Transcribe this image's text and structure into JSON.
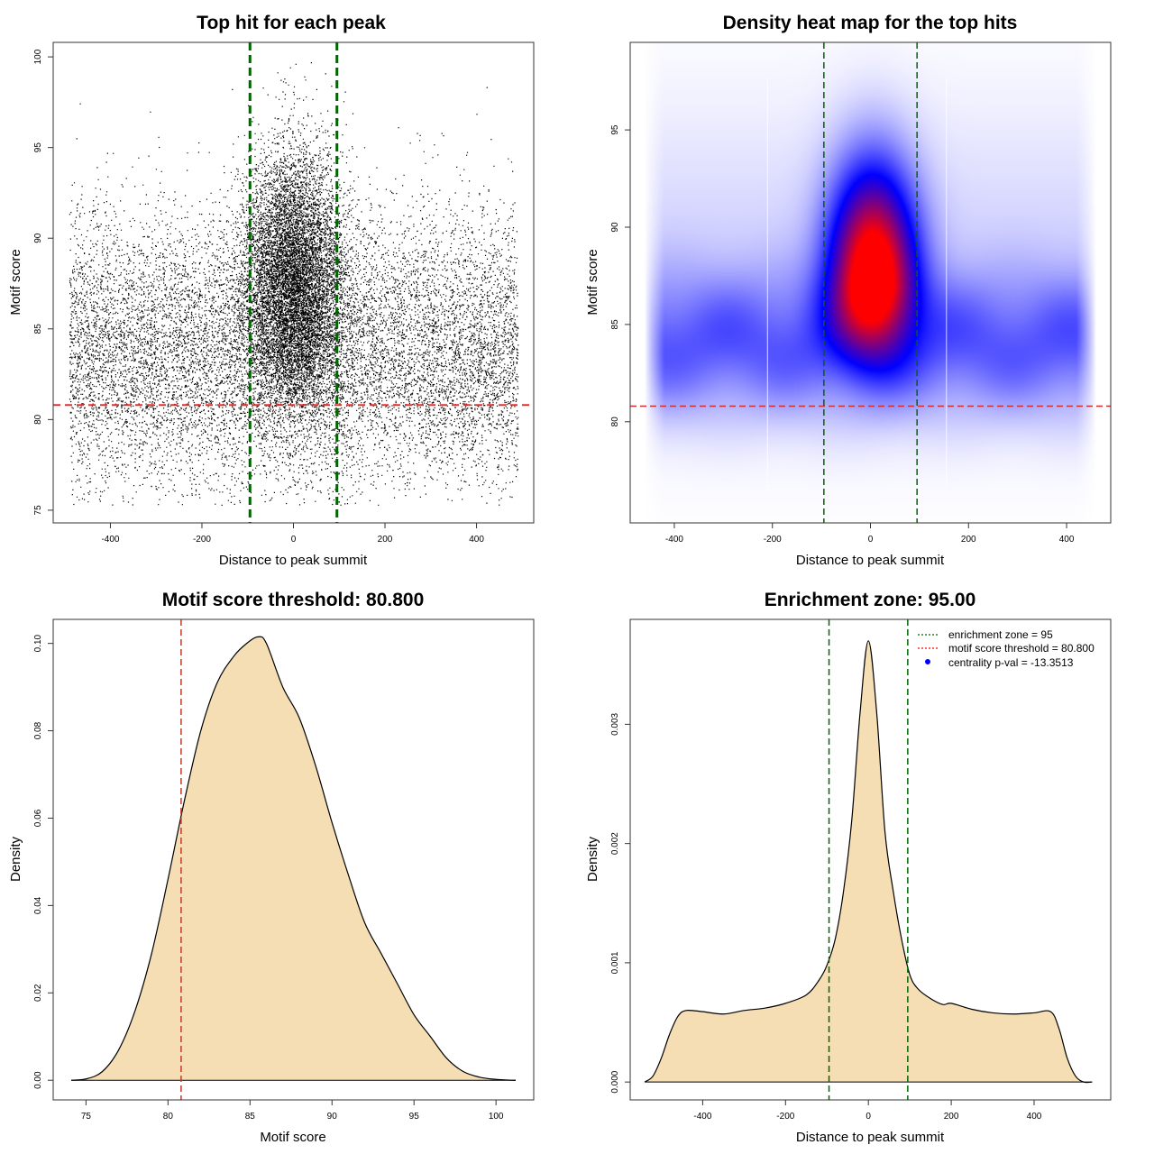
{
  "chart_data": [
    {
      "id": "p1",
      "type": "scatter",
      "title": "Top hit for each peak",
      "xlabel": "Distance to peak summit",
      "ylabel": "Motif score",
      "xlim": [
        -525,
        525
      ],
      "ylim": [
        74.3,
        100.8
      ],
      "xticks": [
        -400,
        -200,
        0,
        200,
        400
      ],
      "yticks": [
        75,
        80,
        85,
        90,
        95,
        100
      ],
      "n_points": 22000,
      "central_fraction": 0.43,
      "central_center": 0,
      "central_sd": 55,
      "central_score_mean": 87.5,
      "central_score_sd": 3.6,
      "background_range": [
        -490,
        490
      ],
      "background_score_mean": 83.7,
      "background_score_sd": 3.8,
      "threshold_line": 80.8,
      "zone_lines": [
        -95,
        95
      ]
    },
    {
      "id": "p2",
      "type": "heatmap",
      "title": "Density heat map for the top hits",
      "xlabel": "Distance to peak summit",
      "ylabel": "Motif score",
      "xlim": [
        -490,
        490
      ],
      "ylim": [
        74.8,
        99.5
      ],
      "xticks": [
        -400,
        -200,
        0,
        200,
        400
      ],
      "yticks": [
        80,
        85,
        90,
        95
      ],
      "peak_center": [
        5,
        87.5
      ],
      "colors": {
        "low": "#ffffff",
        "mid": "#0000ff",
        "high": "#ff0000"
      },
      "threshold_line": 80.8,
      "zone_lines": [
        -95,
        95
      ],
      "faint_lines": [
        -210,
        155
      ]
    },
    {
      "id": "p3",
      "type": "area",
      "title": "Motif score threshold: 80.800",
      "xlabel": "Motif score",
      "ylabel": "Density",
      "xlim": [
        73.0,
        102.3
      ],
      "ylim": [
        -0.0045,
        0.1055
      ],
      "xticks": [
        75,
        80,
        85,
        90,
        95,
        100
      ],
      "yticks": [
        0.0,
        0.02,
        0.04,
        0.06,
        0.08,
        0.1
      ],
      "ytick_labels": [
        "0.00",
        "0.02",
        "0.04",
        "0.06",
        "0.08",
        "0.10"
      ],
      "x": [
        74.1,
        75,
        76,
        77,
        78,
        79,
        80,
        81,
        82,
        83,
        84,
        84.8,
        85.5,
        86,
        87,
        88,
        89,
        90,
        91,
        92,
        93,
        94,
        95,
        96,
        97,
        98,
        99,
        100,
        101,
        101.2
      ],
      "y": [
        0.0,
        0.0003,
        0.002,
        0.007,
        0.016,
        0.029,
        0.046,
        0.064,
        0.08,
        0.091,
        0.097,
        0.1,
        0.1015,
        0.1,
        0.09,
        0.083,
        0.072,
        0.059,
        0.047,
        0.036,
        0.029,
        0.022,
        0.015,
        0.01,
        0.005,
        0.002,
        0.0007,
        0.0002,
        0.0,
        0.0
      ],
      "fill": "#f5deb3",
      "threshold_line": 80.8
    },
    {
      "id": "p4",
      "type": "area",
      "title": "Enrichment zone: 95.00",
      "xlabel": "Distance to peak summit",
      "ylabel": "Density",
      "xlim": [
        -575,
        585
      ],
      "ylim": [
        -0.00015,
        0.00388
      ],
      "xticks": [
        -400,
        -200,
        0,
        200,
        400
      ],
      "yticks": [
        0.0,
        0.001,
        0.002,
        0.003
      ],
      "ytick_labels": [
        "0.000",
        "0.001",
        "0.002",
        "0.003"
      ],
      "x": [
        -540,
        -520,
        -500,
        -480,
        -460,
        -440,
        -400,
        -350,
        -300,
        -250,
        -200,
        -150,
        -120,
        -100,
        -80,
        -60,
        -40,
        -20,
        0,
        20,
        40,
        60,
        80,
        100,
        120,
        150,
        180,
        200,
        250,
        300,
        350,
        400,
        440,
        460,
        480,
        500,
        520,
        540
      ],
      "y": [
        0.0,
        5e-05,
        0.0002,
        0.0004,
        0.00055,
        0.0006,
        0.00059,
        0.00057,
        0.0006,
        0.00062,
        0.00066,
        0.00073,
        0.00085,
        0.00098,
        0.0012,
        0.0016,
        0.0022,
        0.0031,
        0.0037,
        0.0031,
        0.0021,
        0.0016,
        0.0012,
        0.0009,
        0.00078,
        0.0007,
        0.00065,
        0.00066,
        0.00061,
        0.00058,
        0.00057,
        0.00058,
        0.00059,
        0.00045,
        0.0002,
        5e-05,
        0.0,
        0.0
      ],
      "fill": "#f5deb3",
      "zone_lines": [
        -95,
        95
      ],
      "legend": [
        {
          "label": "enrichment zone = 95",
          "color": "#006400",
          "style": "dotted-line"
        },
        {
          "label": "motif score threshold = 80.800",
          "color": "#ff0000",
          "style": "dotted-line"
        },
        {
          "label": "centrality p-val = -13.3513",
          "color": "#0000ff",
          "style": "point"
        }
      ],
      "legend_position": "top-right"
    }
  ]
}
